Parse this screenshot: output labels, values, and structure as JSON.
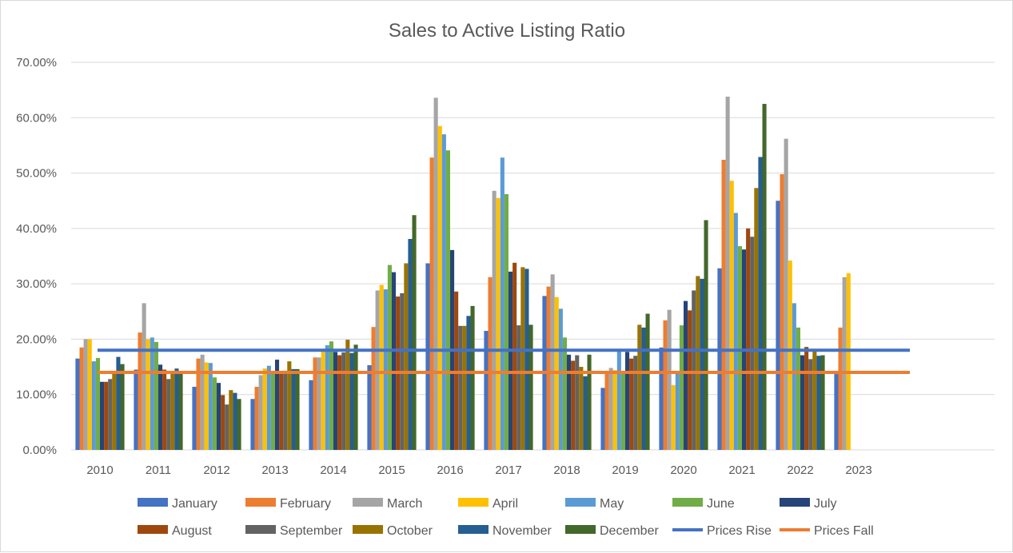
{
  "chart_data": {
    "type": "bar",
    "title": "Sales to Active Listing Ratio",
    "xlabel": "",
    "ylabel": "",
    "ylim": [
      0,
      0.7
    ],
    "y_ticks": [
      0,
      0.1,
      0.2,
      0.3,
      0.4,
      0.5,
      0.6,
      0.7
    ],
    "y_tick_labels": [
      "0.00%",
      "10.00%",
      "20.00%",
      "30.00%",
      "40.00%",
      "50.00%",
      "60.00%",
      "70.00%"
    ],
    "categories": [
      "2010",
      "2011",
      "2012",
      "2013",
      "2014",
      "2015",
      "2016",
      "2017",
      "2018",
      "2019",
      "2020",
      "2021",
      "2022",
      "2023"
    ],
    "grid": true,
    "legend_position": "bottom",
    "series": [
      {
        "name": "January",
        "color": "#4472C4",
        "values": [
          0.165,
          0.145,
          0.114,
          0.092,
          0.126,
          0.153,
          0.337,
          0.215,
          0.278,
          0.112,
          0.185,
          0.328,
          0.45,
          0.137
        ]
      },
      {
        "name": "February",
        "color": "#ED7D31",
        "values": [
          0.185,
          0.212,
          0.165,
          0.114,
          0.167,
          0.222,
          0.528,
          0.312,
          0.295,
          0.14,
          0.234,
          0.524,
          0.498,
          0.221
        ]
      },
      {
        "name": "March",
        "color": "#A5A5A5",
        "values": [
          0.2,
          0.265,
          0.172,
          0.135,
          0.167,
          0.288,
          0.636,
          0.468,
          0.317,
          0.148,
          0.253,
          0.638,
          0.562,
          0.312
        ]
      },
      {
        "name": "April",
        "color": "#FFC000",
        "values": [
          0.2,
          0.2,
          0.158,
          0.147,
          0.178,
          0.298,
          0.585,
          0.455,
          0.276,
          0.144,
          0.117,
          0.486,
          0.342,
          0.319
        ]
      },
      {
        "name": "May",
        "color": "#5B9BD5",
        "values": [
          0.16,
          0.203,
          0.157,
          0.152,
          0.189,
          0.29,
          0.57,
          0.528,
          0.255,
          0.18,
          0.143,
          0.428,
          0.265,
          null
        ]
      },
      {
        "name": "June",
        "color": "#70AD47",
        "values": [
          0.166,
          0.195,
          0.131,
          0.14,
          0.196,
          0.334,
          0.541,
          0.462,
          0.203,
          0.142,
          0.225,
          0.368,
          0.221,
          null
        ]
      },
      {
        "name": "July",
        "color": "#264478",
        "values": [
          0.123,
          0.154,
          0.121,
          0.163,
          0.177,
          0.321,
          0.361,
          0.322,
          0.172,
          0.177,
          0.269,
          0.362,
          0.171,
          null
        ]
      },
      {
        "name": "August",
        "color": "#9E480E",
        "values": [
          0.123,
          0.145,
          0.099,
          0.142,
          0.171,
          0.277,
          0.286,
          0.338,
          0.161,
          0.165,
          0.252,
          0.4,
          0.186,
          null
        ]
      },
      {
        "name": "September",
        "color": "#636363",
        "values": [
          0.128,
          0.128,
          0.082,
          0.143,
          0.176,
          0.283,
          0.224,
          0.225,
          0.171,
          0.17,
          0.288,
          0.385,
          0.164,
          null
        ]
      },
      {
        "name": "October",
        "color": "#997300",
        "values": [
          0.14,
          0.14,
          0.108,
          0.16,
          0.199,
          0.337,
          0.224,
          0.33,
          0.15,
          0.226,
          0.314,
          0.473,
          0.178,
          null
        ]
      },
      {
        "name": "November",
        "color": "#255E91",
        "values": [
          0.168,
          0.147,
          0.103,
          0.146,
          0.175,
          0.381,
          0.242,
          0.327,
          0.133,
          0.221,
          0.309,
          0.529,
          0.17,
          null
        ]
      },
      {
        "name": "December",
        "color": "#43682B",
        "values": [
          0.155,
          0.14,
          0.092,
          0.146,
          0.19,
          0.424,
          0.26,
          0.226,
          0.172,
          0.246,
          0.415,
          0.625,
          0.171,
          null
        ]
      }
    ],
    "reference_lines": [
      {
        "name": "Prices Rise",
        "color": "#4472C4",
        "value": 0.18
      },
      {
        "name": "Prices Fall",
        "color": "#ED7D31",
        "value": 0.14
      }
    ]
  }
}
